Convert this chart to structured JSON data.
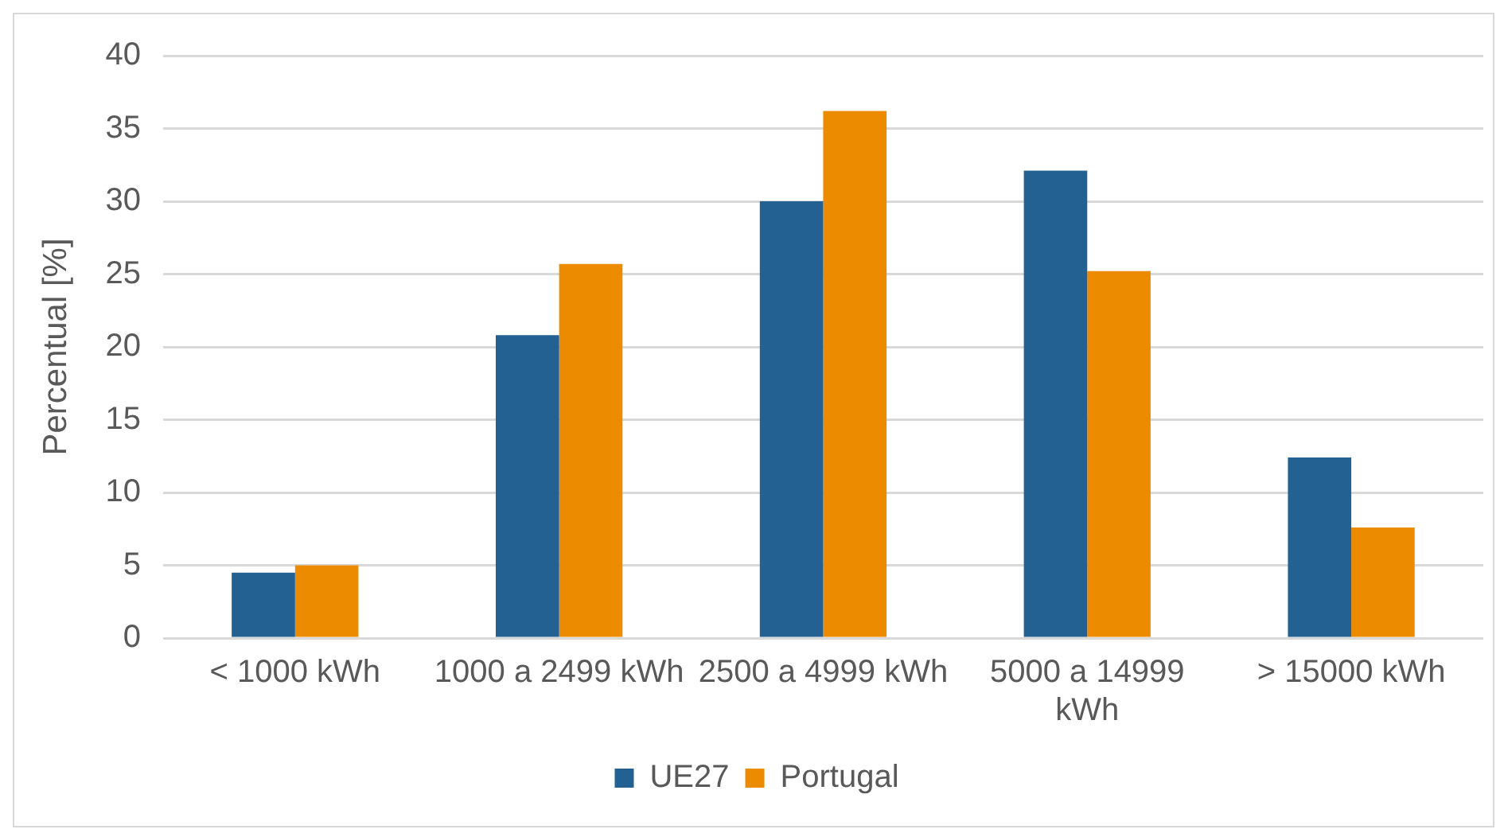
{
  "chart_data": {
    "type": "bar",
    "ylabel": "Percentual [%]",
    "categories": [
      "< 1000 kWh",
      "1000 a 2499 kWh",
      "2500 a 4999 kWh",
      "5000 a 14999 kWh",
      "> 15000 kWh"
    ],
    "series": [
      {
        "name": "UE27",
        "color": "#236192",
        "values": [
          4.5,
          20.8,
          30.0,
          32.1,
          12.4
        ]
      },
      {
        "name": "Portugal",
        "color": "#ed8b00",
        "values": [
          5.0,
          25.7,
          36.2,
          25.2,
          7.6
        ]
      }
    ],
    "ylim": [
      0,
      40
    ],
    "yticks": [
      0,
      5,
      10,
      15,
      20,
      25,
      30,
      35,
      40
    ],
    "grid": "y",
    "legend": "bottom"
  }
}
